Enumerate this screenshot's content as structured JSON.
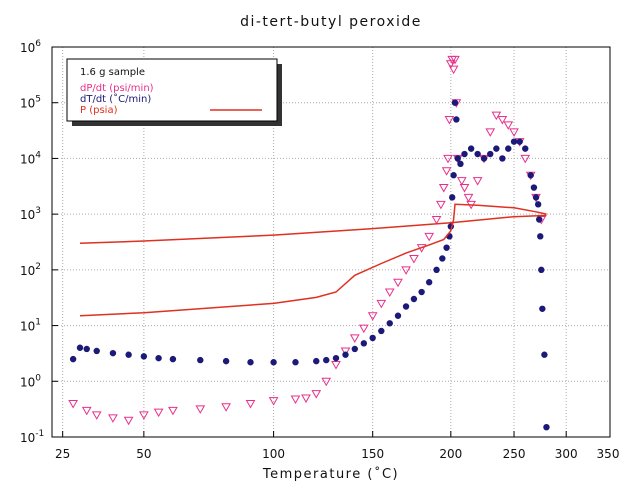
{
  "chart_data": {
    "type": "scatter",
    "title": "di-tert-butyl peroxide",
    "x_label": "Temperature (˚C)",
    "x_scale": "inverse-kelvin",
    "y_scale": "log",
    "grid": true,
    "xlim": [
      22,
      350
    ],
    "xticks": [
      25,
      50,
      100,
      150,
      200,
      250,
      300,
      350
    ],
    "ylim": [
      0.1,
      1000000
    ],
    "yticks": [
      {
        "value": 0.1,
        "label": "10",
        "exponent": "-1"
      },
      {
        "value": 1,
        "label": "10",
        "exponent": "0"
      },
      {
        "value": 10,
        "label": "10",
        "exponent": "1"
      },
      {
        "value": 100,
        "label": "10",
        "exponent": "2"
      },
      {
        "value": 1000,
        "label": "10",
        "exponent": "3"
      },
      {
        "value": 10000,
        "label": "10",
        "exponent": "4"
      },
      {
        "value": 100000,
        "label": "10",
        "exponent": "5"
      },
      {
        "value": 1000000,
        "label": "10",
        "exponent": "6"
      }
    ],
    "legend_title": "1.6 g sample",
    "series": [
      {
        "name": "dP/dt (psi/min)",
        "color": "#e8308a",
        "marker": "triangle",
        "x": [
          28,
          32,
          35,
          40,
          45,
          50,
          55,
          60,
          70,
          80,
          90,
          100,
          110,
          115,
          120,
          125,
          130,
          135,
          140,
          145,
          150,
          155,
          160,
          165,
          170,
          175,
          180,
          185,
          190,
          193,
          195,
          197,
          198,
          199,
          200,
          201,
          202,
          203,
          204,
          205,
          208,
          210,
          213,
          215,
          220,
          225,
          230,
          235,
          240,
          245,
          250,
          255,
          260,
          265,
          270,
          275
        ],
        "values": [
          0.4,
          0.3,
          0.25,
          0.22,
          0.2,
          0.25,
          0.28,
          0.3,
          0.32,
          0.35,
          0.4,
          0.45,
          0.48,
          0.5,
          0.6,
          1,
          2,
          3.5,
          6,
          9,
          15,
          25,
          40,
          60,
          100,
          160,
          250,
          400,
          800,
          1500,
          3000,
          6000,
          10000,
          50000,
          500000,
          600000,
          400000,
          600000,
          100000,
          10000,
          4000,
          3000,
          2000,
          1500,
          4000,
          10000,
          30000,
          60000,
          50000,
          40000,
          30000,
          20000,
          10000,
          5000,
          2000,
          800
        ]
      },
      {
        "name": "dT/dt (˚C/min)",
        "color": "#1c1a78",
        "marker": "circle",
        "x": [
          28,
          30,
          32,
          35,
          40,
          45,
          50,
          55,
          60,
          70,
          80,
          90,
          100,
          110,
          120,
          125,
          130,
          135,
          140,
          145,
          150,
          155,
          160,
          165,
          170,
          175,
          180,
          185,
          190,
          194,
          197,
          199,
          200,
          201,
          202,
          203,
          204,
          205,
          207,
          210,
          215,
          220,
          225,
          230,
          235,
          240,
          245,
          250,
          255,
          260,
          265,
          268,
          270,
          272,
          273,
          274,
          275,
          276,
          278,
          280
        ],
        "values": [
          2.5,
          4,
          3.8,
          3.5,
          3.2,
          3,
          2.8,
          2.6,
          2.5,
          2.4,
          2.3,
          2.2,
          2.2,
          2.2,
          2.3,
          2.4,
          2.6,
          3,
          3.8,
          4.8,
          6,
          8,
          11,
          15,
          22,
          30,
          40,
          60,
          100,
          160,
          250,
          400,
          600,
          2000,
          5000,
          100000,
          50000,
          10000,
          8000,
          12000,
          15000,
          12000,
          10000,
          12000,
          15000,
          10000,
          15000,
          20000,
          20000,
          15000,
          5000,
          3000,
          2000,
          1500,
          800,
          400,
          100,
          20,
          3,
          0.15
        ]
      },
      {
        "name": "P (psia)",
        "color": "#e03020",
        "marker": "line",
        "x": [
          30,
          50,
          100,
          150,
          200,
          250,
          280,
          null,
          30,
          50,
          100,
          120,
          130,
          140,
          155,
          170,
          185,
          195,
          200,
          202,
          203,
          220,
          250,
          270,
          280
        ],
        "values": [
          300,
          330,
          420,
          550,
          700,
          900,
          950,
          null,
          15,
          17,
          25,
          32,
          40,
          80,
          130,
          200,
          280,
          350,
          500,
          800,
          1500,
          1450,
          1300,
          1100,
          1000
        ]
      }
    ]
  }
}
